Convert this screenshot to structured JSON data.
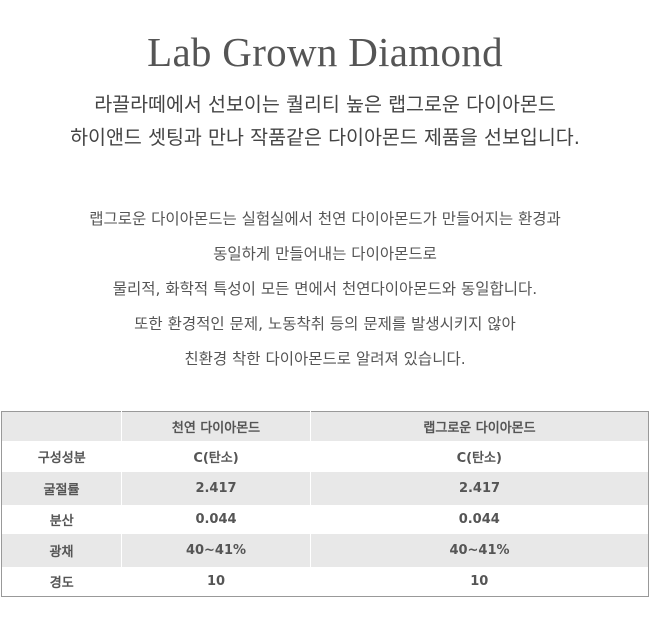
{
  "title": "Lab Grown Diamond",
  "subtitle": [
    "라끌라떼에서 선보이는 퀄리티 높은 랩그로운 다이아몬드",
    "하이앤드 셋팅과 만나 작품같은 다이아몬드 제품을 선보입니다."
  ],
  "body": [
    "랩그로운 다이아몬드는 실험실에서 천연 다이아몬드가 만들어지는 환경과",
    "동일하게 만들어내는 다이아몬드로",
    "물리적, 화학적 특성이 모든 면에서 천연다이아몬드와 동일합니다.",
    "또한 환경적인 문제, 노동착취 등의 문제를 발생시키지 않아",
    "친환경 착한 다이아몬드로 알려져 있습니다."
  ],
  "table": {
    "headers": [
      "",
      "천연 다이아몬드",
      "랩그로운 다이아몬드"
    ],
    "rows": [
      [
        "구성성분",
        "C(탄소)",
        "C(탄소)"
      ],
      [
        "굴절률",
        "2.417",
        "2.417"
      ],
      [
        "분산",
        "0.044",
        "0.044"
      ],
      [
        "광채",
        "40~41%",
        "40~41%"
      ],
      [
        "경도",
        "10",
        "10"
      ]
    ]
  }
}
